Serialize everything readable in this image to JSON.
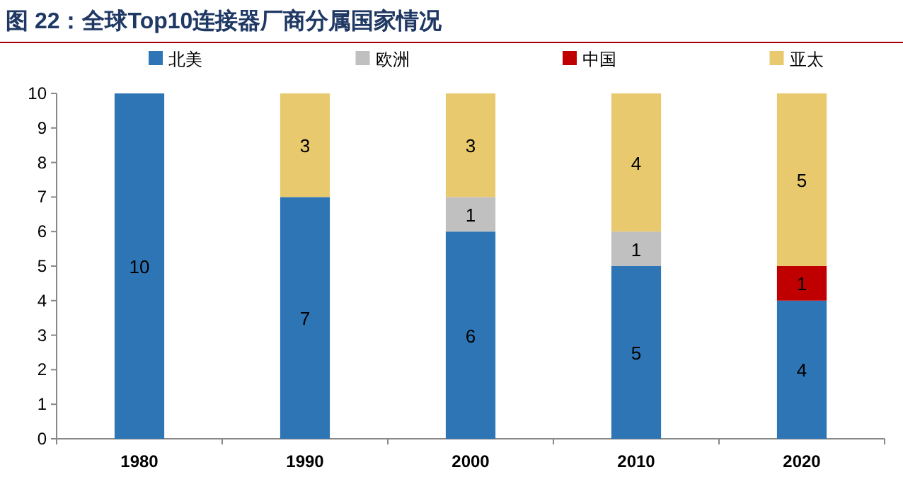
{
  "chart_data": {
    "type": "bar",
    "stacked": true,
    "title": "图 22：全球Top10连接器厂商分属国家情况",
    "categories": [
      "1980",
      "1990",
      "2000",
      "2010",
      "2020"
    ],
    "series": [
      {
        "name": "北美",
        "color": "#2e75b6",
        "values": [
          10,
          7,
          6,
          5,
          4
        ],
        "value_labels": [
          "10",
          "7",
          "6",
          "5",
          "4"
        ]
      },
      {
        "name": "欧洲",
        "color": "#c0c0c0",
        "values": [
          null,
          null,
          1,
          1,
          null
        ],
        "value_labels": [
          null,
          null,
          "1",
          "1",
          null
        ]
      },
      {
        "name": "中国",
        "color": "#c00000",
        "values": [
          null,
          null,
          null,
          null,
          1
        ],
        "value_labels": [
          null,
          null,
          null,
          null,
          "1"
        ]
      },
      {
        "name": "亚太",
        "color": "#e8c96d",
        "values": [
          null,
          3,
          3,
          4,
          5
        ],
        "value_labels": [
          null,
          "3",
          "3",
          "4",
          "5"
        ]
      }
    ],
    "ylim": [
      0,
      10
    ],
    "yticks": [
      0,
      1,
      2,
      3,
      4,
      5,
      6,
      7,
      8,
      9,
      10
    ],
    "legend": "top",
    "grid": false
  }
}
